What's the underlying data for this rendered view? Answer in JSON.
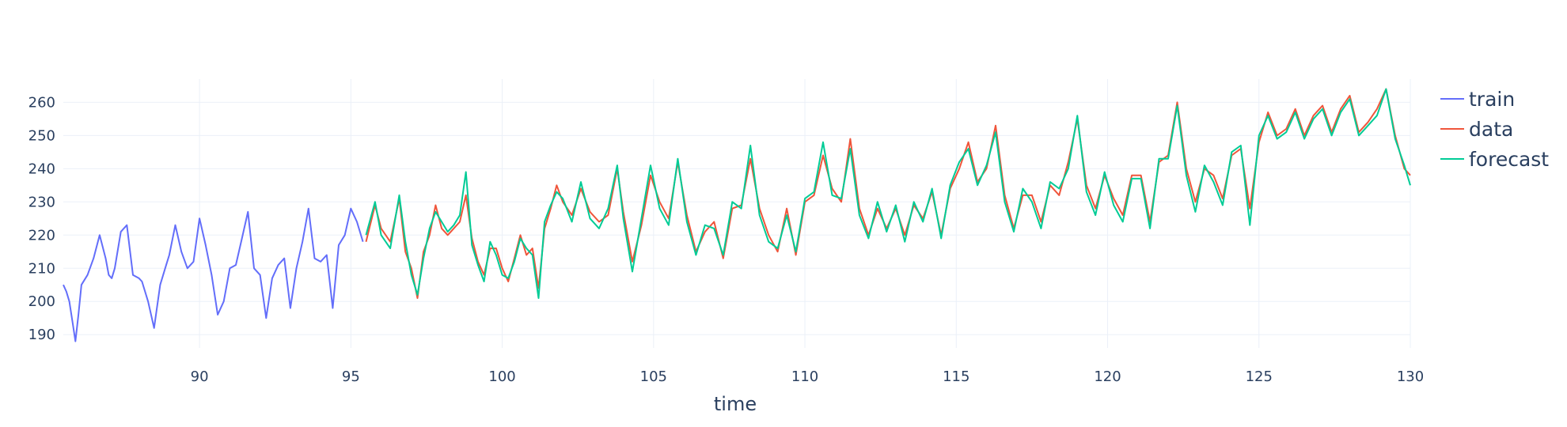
{
  "chart_data": {
    "type": "line",
    "title": "",
    "xlabel": "time",
    "ylabel": "",
    "xlim": [
      85.5,
      130
    ],
    "ylim": [
      186,
      267
    ],
    "x_ticks": [
      90,
      95,
      100,
      105,
      110,
      115,
      120,
      125,
      130
    ],
    "y_ticks": [
      190,
      200,
      210,
      220,
      230,
      240,
      250,
      260
    ],
    "grid": true,
    "legend": "top-right",
    "colors": {
      "train": "#636efa",
      "data": "#ef553b",
      "forecast": "#00cc96",
      "grid": "#ebf0f8",
      "tick_text": "#2a3f5f"
    },
    "series": [
      {
        "name": "train",
        "x": [
          85.5,
          85.6,
          85.7,
          85.8,
          85.9,
          86.0,
          86.1,
          86.3,
          86.5,
          86.7,
          86.9,
          87.0,
          87.1,
          87.2,
          87.4,
          87.6,
          87.8,
          88.0,
          88.1,
          88.3,
          88.5,
          88.7,
          88.9,
          89.0,
          89.2,
          89.4,
          89.6,
          89.8,
          90.0,
          90.2,
          90.4,
          90.6,
          90.8,
          91.0,
          91.2,
          91.4,
          91.6,
          91.8,
          92.0,
          92.2,
          92.4,
          92.6,
          92.8,
          93.0,
          93.2,
          93.4,
          93.6,
          93.8,
          94.0,
          94.2,
          94.4,
          94.6,
          94.8,
          95.0,
          95.2,
          95.4
        ],
        "values": [
          205,
          203,
          200,
          194,
          188,
          196,
          205,
          208,
          213,
          220,
          213,
          208,
          207,
          210,
          221,
          223,
          208,
          207,
          206,
          200,
          192,
          205,
          211,
          214,
          223,
          215,
          210,
          212,
          225,
          217,
          208,
          196,
          200,
          210,
          211,
          219,
          227,
          210,
          208,
          195,
          207,
          211,
          213,
          198,
          210,
          218,
          228,
          213,
          212,
          214,
          198,
          217,
          220,
          228,
          224,
          218
        ]
      },
      {
        "name": "data",
        "x": [
          95.5,
          95.8,
          96.0,
          96.3,
          96.6,
          96.8,
          97.0,
          97.2,
          97.4,
          97.6,
          97.8,
          98.0,
          98.2,
          98.4,
          98.6,
          98.8,
          99.0,
          99.2,
          99.4,
          99.6,
          99.8,
          100.0,
          100.2,
          100.4,
          100.6,
          100.8,
          101.0,
          101.2,
          101.4,
          101.6,
          101.8,
          102.0,
          102.3,
          102.6,
          102.9,
          103.2,
          103.5,
          103.8,
          104.0,
          104.3,
          104.6,
          104.9,
          105.2,
          105.5,
          105.8,
          106.1,
          106.4,
          106.7,
          107.0,
          107.3,
          107.6,
          107.9,
          108.2,
          108.5,
          108.8,
          109.1,
          109.4,
          109.7,
          110.0,
          110.3,
          110.6,
          110.9,
          111.2,
          111.5,
          111.8,
          112.1,
          112.4,
          112.7,
          113.0,
          113.3,
          113.6,
          113.9,
          114.2,
          114.5,
          114.8,
          115.1,
          115.4,
          115.7,
          116.0,
          116.3,
          116.6,
          116.9,
          117.2,
          117.5,
          117.8,
          118.1,
          118.4,
          118.7,
          119.0,
          119.3,
          119.6,
          119.9,
          120.2,
          120.5,
          120.8,
          121.1,
          121.4,
          121.7,
          122.0,
          122.3,
          122.6,
          122.9,
          123.2,
          123.5,
          123.8,
          124.1,
          124.4,
          124.7,
          125.0,
          125.3,
          125.6,
          125.9,
          126.2,
          126.5,
          126.8,
          127.1,
          127.4,
          127.7,
          128.0,
          128.3,
          128.6,
          128.9,
          129.2,
          129.5,
          129.8,
          130.0
        ],
        "values": [
          218,
          229,
          222,
          218,
          231,
          215,
          210,
          201,
          215,
          220,
          229,
          222,
          220,
          222,
          224,
          232,
          219,
          212,
          208,
          216,
          216,
          210,
          206,
          213,
          220,
          214,
          216,
          204,
          222,
          228,
          235,
          230,
          226,
          234,
          227,
          224,
          226,
          240,
          227,
          212,
          223,
          238,
          230,
          225,
          242,
          226,
          215,
          221,
          224,
          213,
          228,
          229,
          243,
          228,
          220,
          215,
          228,
          214,
          230,
          232,
          244,
          234,
          230,
          249,
          228,
          220,
          228,
          222,
          228,
          220,
          229,
          225,
          233,
          220,
          234,
          240,
          248,
          236,
          240,
          253,
          232,
          222,
          232,
          232,
          224,
          235,
          232,
          242,
          255,
          235,
          228,
          238,
          231,
          226,
          238,
          238,
          224,
          242,
          244,
          260,
          240,
          230,
          240,
          238,
          231,
          244,
          246,
          228,
          248,
          257,
          250,
          252,
          258,
          250,
          256,
          259,
          251,
          258,
          262,
          251,
          254,
          258,
          264,
          250,
          240,
          238
        ]
      },
      {
        "name": "forecast",
        "x": [
          95.5,
          95.8,
          96.0,
          96.3,
          96.6,
          96.8,
          97.0,
          97.2,
          97.4,
          97.6,
          97.8,
          98.0,
          98.2,
          98.4,
          98.6,
          98.8,
          99.0,
          99.2,
          99.4,
          99.6,
          99.8,
          100.0,
          100.2,
          100.4,
          100.6,
          100.8,
          101.0,
          101.2,
          101.4,
          101.6,
          101.8,
          102.0,
          102.3,
          102.6,
          102.9,
          103.2,
          103.5,
          103.8,
          104.0,
          104.3,
          104.6,
          104.9,
          105.2,
          105.5,
          105.8,
          106.1,
          106.4,
          106.7,
          107.0,
          107.3,
          107.6,
          107.9,
          108.2,
          108.5,
          108.8,
          109.1,
          109.4,
          109.7,
          110.0,
          110.3,
          110.6,
          110.9,
          111.2,
          111.5,
          111.8,
          112.1,
          112.4,
          112.7,
          113.0,
          113.3,
          113.6,
          113.9,
          114.2,
          114.5,
          114.8,
          115.1,
          115.4,
          115.7,
          116.0,
          116.3,
          116.6,
          116.9,
          117.2,
          117.5,
          117.8,
          118.1,
          118.4,
          118.7,
          119.0,
          119.3,
          119.6,
          119.9,
          120.2,
          120.5,
          120.8,
          121.1,
          121.4,
          121.7,
          122.0,
          122.3,
          122.6,
          122.9,
          123.2,
          123.5,
          123.8,
          124.1,
          124.4,
          124.7,
          125.0,
          125.3,
          125.6,
          125.9,
          126.2,
          126.5,
          126.8,
          127.1,
          127.4,
          127.7,
          128.0,
          128.3,
          128.6,
          128.9,
          129.2,
          129.5,
          129.8,
          130.0
        ],
        "values": [
          220,
          230,
          220,
          216,
          232,
          218,
          208,
          202,
          213,
          222,
          227,
          224,
          221,
          223,
          226,
          239,
          217,
          211,
          206,
          218,
          214,
          208,
          207,
          212,
          219,
          216,
          214,
          201,
          224,
          229,
          233,
          231,
          224,
          236,
          225,
          222,
          228,
          241,
          225,
          209,
          225,
          241,
          228,
          223,
          243,
          224,
          214,
          223,
          222,
          214,
          230,
          228,
          247,
          226,
          218,
          216,
          226,
          215,
          231,
          233,
          248,
          232,
          231,
          246,
          226,
          219,
          230,
          221,
          229,
          218,
          230,
          224,
          234,
          219,
          235,
          242,
          246,
          235,
          241,
          251,
          230,
          221,
          234,
          230,
          222,
          236,
          234,
          240,
          256,
          233,
          226,
          239,
          229,
          224,
          237,
          237,
          222,
          243,
          243,
          259,
          238,
          227,
          241,
          236,
          229,
          245,
          247,
          223,
          250,
          256,
          249,
          251,
          257,
          249,
          255,
          258,
          250,
          257,
          261,
          250,
          253,
          256,
          264,
          249,
          241,
          235
        ]
      }
    ]
  }
}
